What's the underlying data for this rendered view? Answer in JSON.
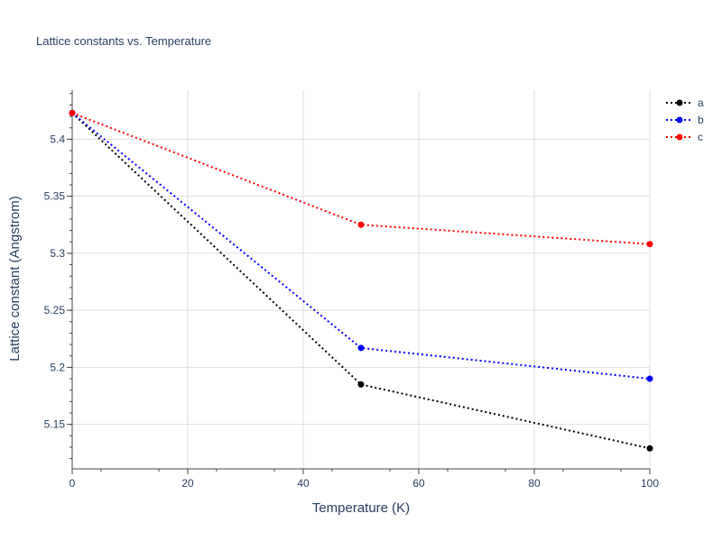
{
  "chart_data": {
    "type": "line",
    "title": "Lattice constants vs. Temperature",
    "xlabel": "Temperature (K)",
    "ylabel": "Lattice constant (Angstrom)",
    "x": [
      0,
      50,
      100
    ],
    "xlim": [
      0,
      100
    ],
    "ylim": [
      5.111,
      5.443
    ],
    "x_ticks": [
      "0",
      "20",
      "40",
      "60",
      "80",
      "100"
    ],
    "y_ticks": [
      "5.15",
      "5.2",
      "5.25",
      "5.3",
      "5.35",
      "5.4"
    ],
    "grid": true,
    "legend_position": "top-right",
    "line_style": "dotted",
    "series": [
      {
        "name": "a",
        "color": "#000000",
        "values": [
          5.423,
          5.185,
          5.129
        ]
      },
      {
        "name": "b",
        "color": "#0000ff",
        "values": [
          5.423,
          5.217,
          5.19
        ]
      },
      {
        "name": "c",
        "color": "#ff0000",
        "values": [
          5.423,
          5.325,
          5.308
        ]
      }
    ]
  }
}
